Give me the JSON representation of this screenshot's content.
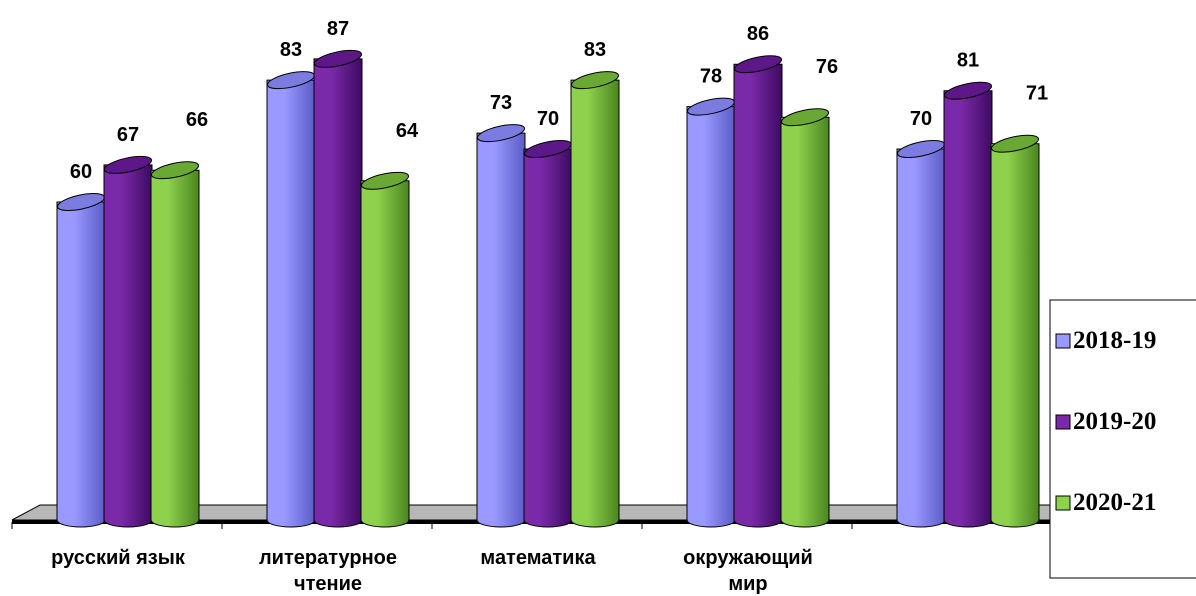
{
  "chart_data": {
    "type": "bar",
    "categories": [
      [
        "русский язык"
      ],
      [
        "литературное",
        "чтение"
      ],
      [
        "математика"
      ],
      [
        "окружающий",
        "мир"
      ],
      [
        ""
      ]
    ],
    "series": [
      {
        "name": "2018-19",
        "values": [
          60,
          83,
          73,
          78,
          70
        ],
        "color": "#9999ff",
        "top": "#7b7be0",
        "dark": "#5c5cc8"
      },
      {
        "name": "2019-20",
        "values": [
          67,
          87,
          70,
          86,
          81
        ],
        "color": "#7a2aa8",
        "top": "#5e1789",
        "dark": "#3e0a62"
      },
      {
        "name": "2020-21",
        "values": [
          66,
          64,
          83,
          76,
          71
        ],
        "color": "#8ed14c",
        "top": "#6aa834",
        "dark": "#4a8520"
      }
    ],
    "ylim": [
      0,
      100
    ],
    "legend": "right",
    "grid": false
  }
}
